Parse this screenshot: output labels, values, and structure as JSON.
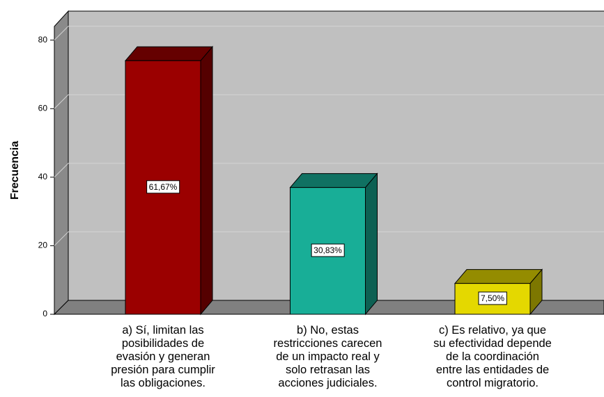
{
  "chart_data": {
    "type": "bar3d",
    "y_axis_label": "Frecuencia",
    "categories": [
      "a) Sí, limitan las\nposibilidades de\nevasión y generan\npresión para cumplir\nlas obligaciones.",
      "b) No, estas\nrestricciones carecen\nde un impacto real y\nsolo retrasan las\nacciones judiciales.",
      "c) Es relativo, ya que\nsu efectividad depende\nde la coordinación\nentre las entidades de\ncontrol migratorio."
    ],
    "values": [
      74,
      37,
      9
    ],
    "data_labels": [
      "61,67%",
      "30,83%",
      "7,50%"
    ],
    "colors": [
      "#9b0000",
      "#18ae97",
      "#e4d800"
    ],
    "ylim": [
      0,
      84
    ],
    "yticks": [
      0,
      20,
      40,
      60,
      80
    ],
    "grid": true
  }
}
